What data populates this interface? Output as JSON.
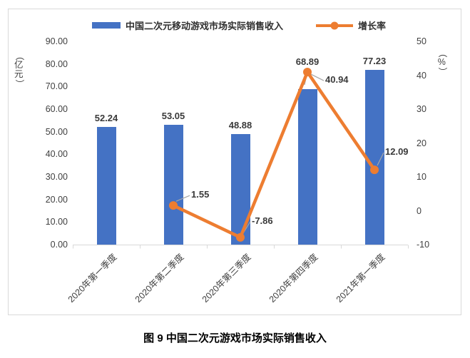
{
  "caption": "图 9  中国二次元游戏市场实际销售收入",
  "colors": {
    "bar": "#4472C4",
    "line": "#ED7D31",
    "text": "#3F3F3F",
    "axis_line": "#D9D9D9",
    "leader_line": "#A6A6A6",
    "frame_border": "#D9D9D9"
  },
  "chart_data": {
    "type": "bar+line",
    "categories": [
      "2020年第一季度",
      "2020年第二季度",
      "2020年第三季度",
      "2020年第四季度",
      "2021年第一季度"
    ],
    "series": [
      {
        "name": "中国二次元移动游戏市场实际销售收入",
        "type": "bar",
        "y_axis": "left",
        "color": "#4472C4",
        "values": [
          52.24,
          53.05,
          48.88,
          68.89,
          77.23
        ]
      },
      {
        "name": "增长率",
        "type": "line",
        "y_axis": "right",
        "color": "#ED7D31",
        "values": [
          null,
          1.55,
          -7.86,
          40.94,
          12.09
        ]
      }
    ],
    "data_labels": {
      "bar": [
        "52.24",
        "53.05",
        "48.88",
        "68.89",
        "77.23"
      ],
      "line": [
        null,
        "1.55",
        "-7.86",
        "40.94",
        "12.09"
      ]
    },
    "left_axis": {
      "title": "（亿元）",
      "min": 0,
      "max": 90,
      "step": 10,
      "labels": [
        "90.00",
        "80.00",
        "70.00",
        "60.00",
        "50.00",
        "40.00",
        "30.00",
        "20.00",
        "10.00",
        "0.00"
      ]
    },
    "right_axis": {
      "title": "（%）",
      "min": -10,
      "max": 50,
      "step": 10,
      "labels": [
        "50",
        "40",
        "30",
        "20",
        "10",
        "0",
        "-10"
      ]
    },
    "legend_position": "top",
    "grid": false
  }
}
